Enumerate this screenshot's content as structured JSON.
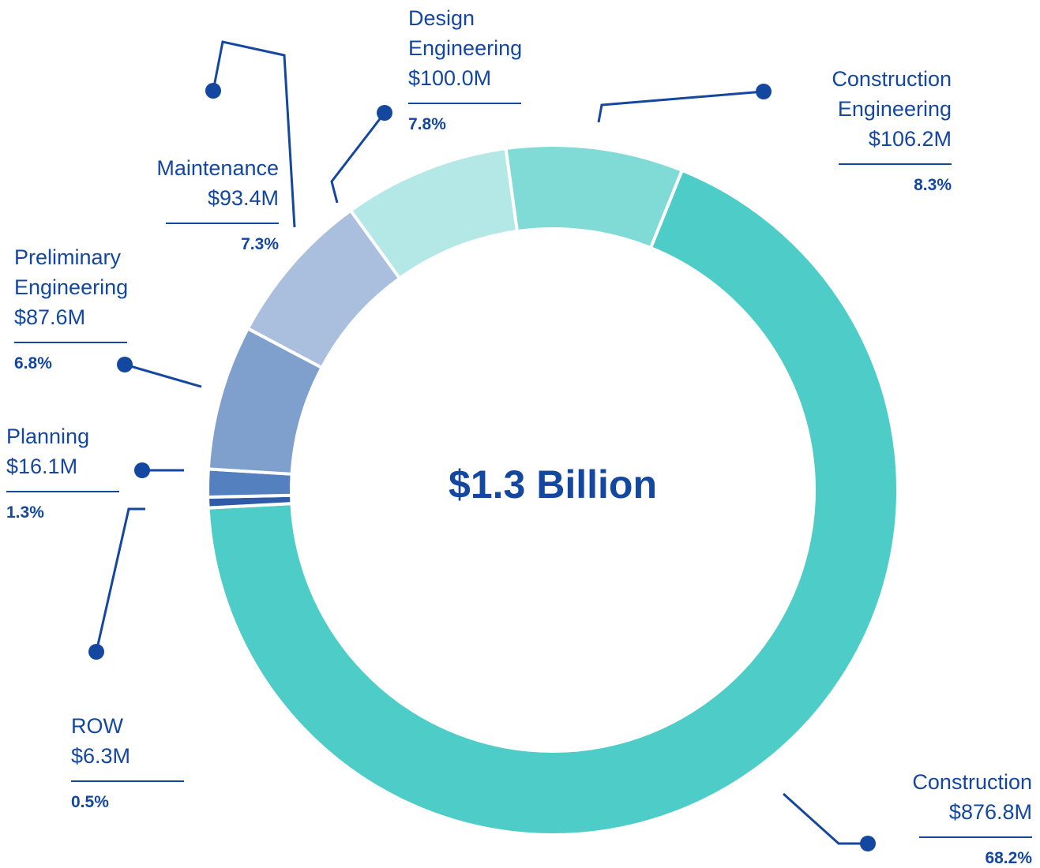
{
  "chart_data": {
    "type": "donut",
    "center_label": "$1.3 Billion",
    "categories": [
      "Construction",
      "ROW",
      "Planning",
      "Preliminary Engineering",
      "Maintenance",
      "Design Engineering",
      "Construction Engineering"
    ],
    "values": [
      68.2,
      0.5,
      1.3,
      6.8,
      7.3,
      7.8,
      8.3
    ],
    "value_labels": [
      "68.2%",
      "0.5%",
      "1.3%",
      "6.8%",
      "7.3%",
      "7.8%",
      "8.3%"
    ],
    "amounts": [
      876.8,
      6.3,
      16.1,
      87.6,
      93.4,
      100.0,
      106.2
    ],
    "amount_labels": [
      "$876.8M",
      "$6.3M",
      "$16.1M",
      "$87.6M",
      "$93.4M",
      "$100.0M",
      "$106.2M"
    ],
    "colors": [
      "#4ecdc8",
      "#2f5ba8",
      "#5580c0",
      "#7fa0cc",
      "#a9bfdd",
      "#b3e8e7",
      "#80dbd7"
    ],
    "label_color": "#1447a0"
  }
}
